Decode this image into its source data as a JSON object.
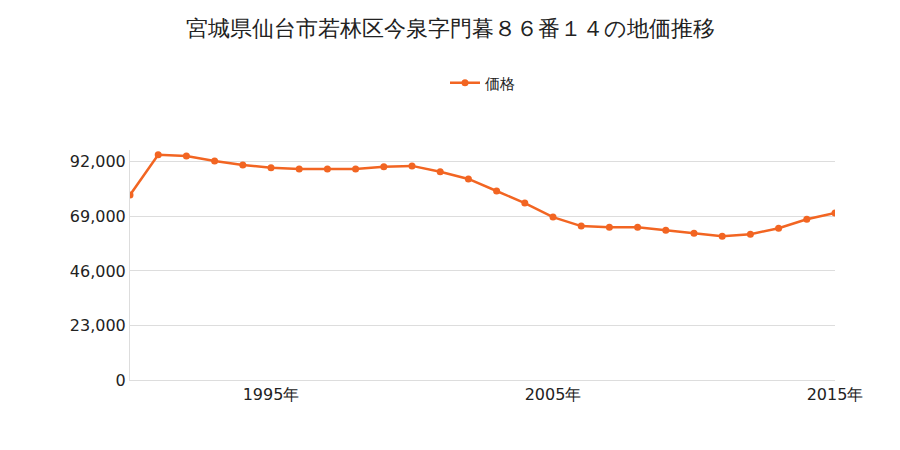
{
  "chart_data": {
    "type": "line",
    "title": "宮城県仙台市若林区今泉字門暮８６番１４の地価推移",
    "x": [
      1990,
      1991,
      1992,
      1993,
      1994,
      1995,
      1996,
      1997,
      1998,
      1999,
      2000,
      2001,
      2002,
      2003,
      2004,
      2005,
      2006,
      2007,
      2008,
      2009,
      2010,
      2011,
      2012,
      2013,
      2014,
      2015
    ],
    "series": [
      {
        "name": "価格",
        "color": "#f26522",
        "marker": "circle",
        "values": [
          78000,
          95000,
          94500,
          92400,
          90700,
          89500,
          89000,
          89000,
          89000,
          89900,
          90300,
          87800,
          84800,
          79700,
          74600,
          68700,
          64900,
          64400,
          64400,
          63200,
          61900,
          60600,
          61500,
          64000,
          67800,
          70400
        ]
      }
    ],
    "xlim": [
      1990,
      2015
    ],
    "xticks": [
      {
        "value": 1995,
        "label": "1995年"
      },
      {
        "value": 2005,
        "label": "2005年"
      },
      {
        "value": 2015,
        "label": "2015年"
      }
    ],
    "ylim": [
      0,
      97000
    ],
    "yticks": [
      0,
      {
        "value": 23000,
        "label": "23,000"
      },
      {
        "value": 46000,
        "label": "46,000"
      },
      {
        "value": 69000,
        "label": "69,000"
      },
      {
        "value": 92000,
        "label": "92,000"
      }
    ],
    "grid": true,
    "legend": "top"
  }
}
